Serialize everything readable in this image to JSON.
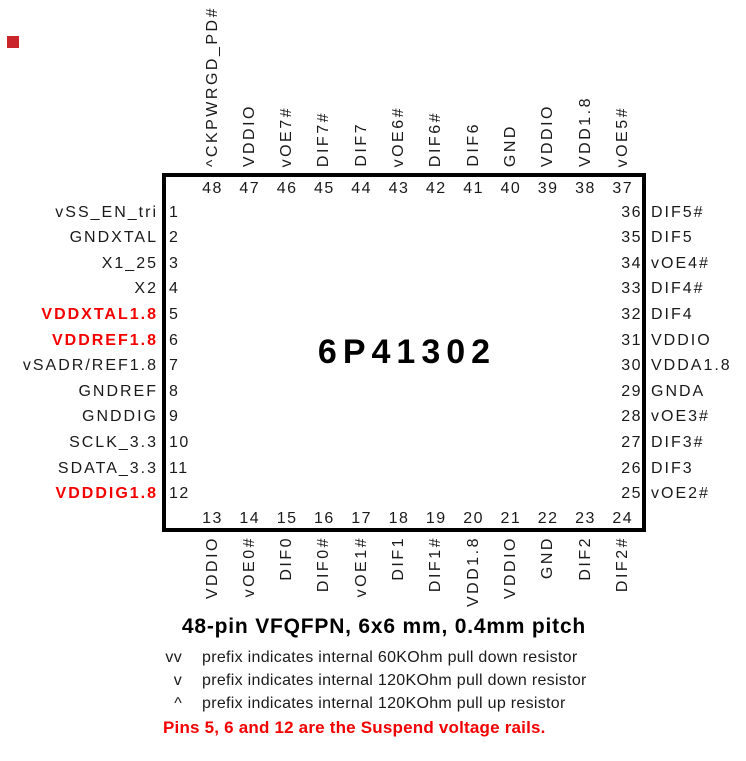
{
  "colors": {
    "accent_red": "#f40000",
    "marker_red": "#c9252b",
    "ink": "#1a1a1a"
  },
  "marker": {
    "present": true
  },
  "chip": {
    "name": "6P41302"
  },
  "pins": {
    "top": [
      {
        "num": "48",
        "label": "^CKPWRGD_PD#"
      },
      {
        "num": "47",
        "label": "VDDIO"
      },
      {
        "num": "46",
        "label": "vOE7#"
      },
      {
        "num": "45",
        "label": "DIF7#"
      },
      {
        "num": "44",
        "label": "DIF7"
      },
      {
        "num": "43",
        "label": "vOE6#"
      },
      {
        "num": "42",
        "label": "DIF6#"
      },
      {
        "num": "41",
        "label": "DIF6"
      },
      {
        "num": "40",
        "label": "GND"
      },
      {
        "num": "39",
        "label": "VDDIO"
      },
      {
        "num": "38",
        "label": "VDD1.8"
      },
      {
        "num": "37",
        "label": "vOE5#"
      }
    ],
    "bottom": [
      {
        "num": "13",
        "label": "VDDIO"
      },
      {
        "num": "14",
        "label": "vOE0#"
      },
      {
        "num": "15",
        "label": "DIF0"
      },
      {
        "num": "16",
        "label": "DIF0#"
      },
      {
        "num": "17",
        "label": "vOE1#"
      },
      {
        "num": "18",
        "label": "DIF1"
      },
      {
        "num": "19",
        "label": "DIF1#"
      },
      {
        "num": "20",
        "label": "VDD1.8"
      },
      {
        "num": "21",
        "label": "VDDIO"
      },
      {
        "num": "22",
        "label": "GND"
      },
      {
        "num": "23",
        "label": "DIF2"
      },
      {
        "num": "24",
        "label": "DIF2#"
      }
    ],
    "left": [
      {
        "num": "1",
        "label": "vSS_EN_tri",
        "red": false
      },
      {
        "num": "2",
        "label": "GNDXTAL",
        "red": false
      },
      {
        "num": "3",
        "label": "X1_25",
        "red": false
      },
      {
        "num": "4",
        "label": "X2",
        "red": false
      },
      {
        "num": "5",
        "label": "VDDXTAL1.8",
        "red": true
      },
      {
        "num": "6",
        "label": "VDDREF1.8",
        "red": true
      },
      {
        "num": "7",
        "label": "vSADR/REF1.8",
        "red": false
      },
      {
        "num": "8",
        "label": "GNDREF",
        "red": false
      },
      {
        "num": "9",
        "label": "GNDDIG",
        "red": false
      },
      {
        "num": "10",
        "label": "SCLK_3.3",
        "red": false
      },
      {
        "num": "11",
        "label": "SDATA_3.3",
        "red": false
      },
      {
        "num": "12",
        "label": "VDDDIG1.8",
        "red": true
      }
    ],
    "right": [
      {
        "num": "36",
        "label": "DIF5#"
      },
      {
        "num": "35",
        "label": "DIF5"
      },
      {
        "num": "34",
        "label": "vOE4#"
      },
      {
        "num": "33",
        "label": "DIF4#"
      },
      {
        "num": "32",
        "label": "DIF4"
      },
      {
        "num": "31",
        "label": "VDDIO"
      },
      {
        "num": "30",
        "label": "VDDA1.8"
      },
      {
        "num": "29",
        "label": "GNDA"
      },
      {
        "num": "28",
        "label": "vOE3#"
      },
      {
        "num": "27",
        "label": "DIF3#"
      },
      {
        "num": "26",
        "label": "DIF3"
      },
      {
        "num": "25",
        "label": "vOE2#"
      }
    ]
  },
  "caption": {
    "title": "48-pin VFQFPN, 6x6 mm, 0.4mm pitch",
    "notes": [
      {
        "prefix": "vv",
        "text": "prefix indicates internal 60KOhm pull down resistor"
      },
      {
        "prefix": "v",
        "text": "prefix indicates internal 120KOhm pull down resistor"
      },
      {
        "prefix": "^",
        "text": "prefix indicates internal 120KOhm pull up resistor"
      }
    ],
    "warning": "Pins 5, 6 and 12 are the Suspend voltage rails."
  }
}
